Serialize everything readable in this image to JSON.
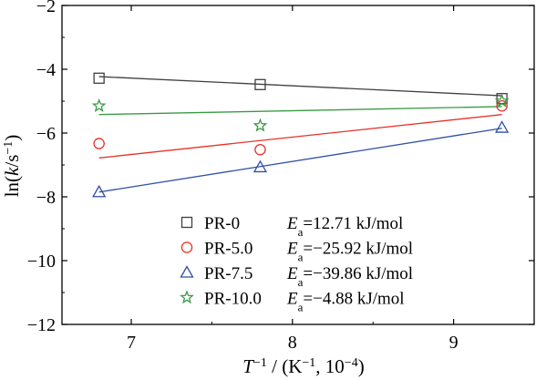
{
  "chart_data": {
    "type": "scatter",
    "xlabel_main": "T",
    "xlabel_sup": "−1",
    "xlabel_rest": " / (K",
    "xlabel_sup2": "−1",
    "xlabel_rest2": ", 10",
    "xlabel_sup3": "−4",
    "xlabel_end": ")",
    "ylabel_pre": "ln(",
    "ylabel_k": "k",
    "ylabel_mid": "/s",
    "ylabel_sup": "−1",
    "ylabel_end": ")",
    "xlim": [
      6.57,
      9.5
    ],
    "ylim": [
      -12,
      -2
    ],
    "xticks": [
      7,
      8,
      9
    ],
    "xtick_labels": [
      "7",
      "8",
      "9"
    ],
    "yticks": [
      -12,
      -10,
      -8,
      -6,
      -4,
      -2
    ],
    "ytick_labels": [
      "−12",
      "−10",
      "−8",
      "−6",
      "−4",
      "−2"
    ],
    "legend_position": "bottom-left",
    "series": [
      {
        "name": "PR-0",
        "ea_label": "E",
        "ea_sub": "a",
        "ea_value": "=12.71 kJ/mol",
        "marker": "square",
        "color": "#404040",
        "line_color": "#404040",
        "x": [
          6.8,
          7.8,
          9.3
        ],
        "y": [
          -4.28,
          -4.48,
          -4.92
        ],
        "fit": [
          [
            6.8,
            -4.23
          ],
          [
            9.3,
            -4.83
          ]
        ]
      },
      {
        "name": "PR-5.0",
        "ea_label": "E",
        "ea_sub": "a",
        "ea_value": "=−25.92 kJ/mol",
        "marker": "circle",
        "color": "#e8312a",
        "line_color": "#e8312a",
        "x": [
          6.8,
          7.8,
          9.3
        ],
        "y": [
          -6.33,
          -6.52,
          -5.15
        ],
        "fit": [
          [
            6.8,
            -6.78
          ],
          [
            9.3,
            -5.42
          ]
        ]
      },
      {
        "name": "PR-7.5",
        "ea_label": "E",
        "ea_sub": "a",
        "ea_value": "=−39.86 kJ/mol",
        "marker": "triangle",
        "color": "#2f4fa6",
        "line_color": "#2f4fa6",
        "x": [
          6.8,
          7.8,
          9.3
        ],
        "y": [
          -7.85,
          -7.07,
          -5.83
        ],
        "fit": [
          [
            6.8,
            -7.85
          ],
          [
            9.3,
            -5.85
          ]
        ]
      },
      {
        "name": "PR-10.0",
        "ea_label": "E",
        "ea_sub": "a",
        "ea_value": "=−4.88 kJ/mol",
        "marker": "star",
        "color": "#3a9a46",
        "line_color": "#3a9a46",
        "x": [
          6.8,
          7.8,
          9.3
        ],
        "y": [
          -5.15,
          -5.77,
          -5.0
        ],
        "fit": [
          [
            6.8,
            -5.42
          ],
          [
            9.3,
            -5.17
          ]
        ]
      }
    ]
  }
}
